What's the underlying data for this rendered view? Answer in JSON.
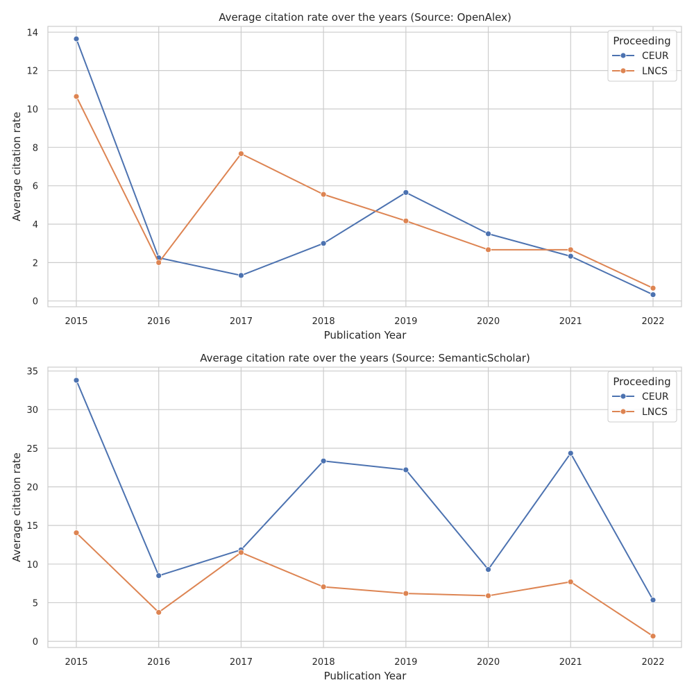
{
  "chart_data": [
    {
      "type": "line",
      "title": "Average citation rate over the years (Source: OpenAlex)",
      "xlabel": "Publication Year",
      "ylabel": "Average citation rate",
      "x": [
        2015,
        2016,
        2017,
        2018,
        2019,
        2020,
        2021,
        2022
      ],
      "x_ticks": [
        "2015",
        "2016",
        "2017",
        "2018",
        "2019",
        "2020",
        "2021",
        "2022"
      ],
      "ylim": [
        -0.3,
        14.3
      ],
      "y_ticks": [
        0,
        2,
        4,
        6,
        8,
        10,
        12,
        14
      ],
      "grid": true,
      "legend": {
        "title": "Proceeding",
        "placement": "top-right"
      },
      "series": [
        {
          "name": "CEUR",
          "color": "#4c72b0",
          "values": [
            13.65,
            2.25,
            1.33,
            3.0,
            5.65,
            3.5,
            2.33,
            0.33
          ]
        },
        {
          "name": "LNCS",
          "color": "#dd8452",
          "values": [
            10.65,
            2.0,
            7.67,
            5.55,
            4.17,
            2.67,
            2.67,
            0.67
          ]
        }
      ]
    },
    {
      "type": "line",
      "title": "Average citation rate over the years (Source: SemanticScholar)",
      "xlabel": "Publication Year",
      "ylabel": "Average citation rate",
      "x": [
        2015,
        2016,
        2017,
        2018,
        2019,
        2020,
        2021,
        2022
      ],
      "x_ticks": [
        "2015",
        "2016",
        "2017",
        "2018",
        "2019",
        "2020",
        "2021",
        "2022"
      ],
      "ylim": [
        -0.8,
        35.5
      ],
      "y_ticks": [
        0,
        5,
        10,
        15,
        20,
        25,
        30,
        35
      ],
      "grid": true,
      "legend": {
        "title": "Proceeding",
        "placement": "top-right"
      },
      "series": [
        {
          "name": "CEUR",
          "color": "#4c72b0",
          "values": [
            33.8,
            8.5,
            11.85,
            23.35,
            22.2,
            9.3,
            24.35,
            5.35
          ]
        },
        {
          "name": "LNCS",
          "color": "#dd8452",
          "values": [
            14.05,
            3.75,
            11.5,
            7.05,
            6.2,
            5.9,
            7.7,
            0.67
          ]
        }
      ]
    }
  ]
}
